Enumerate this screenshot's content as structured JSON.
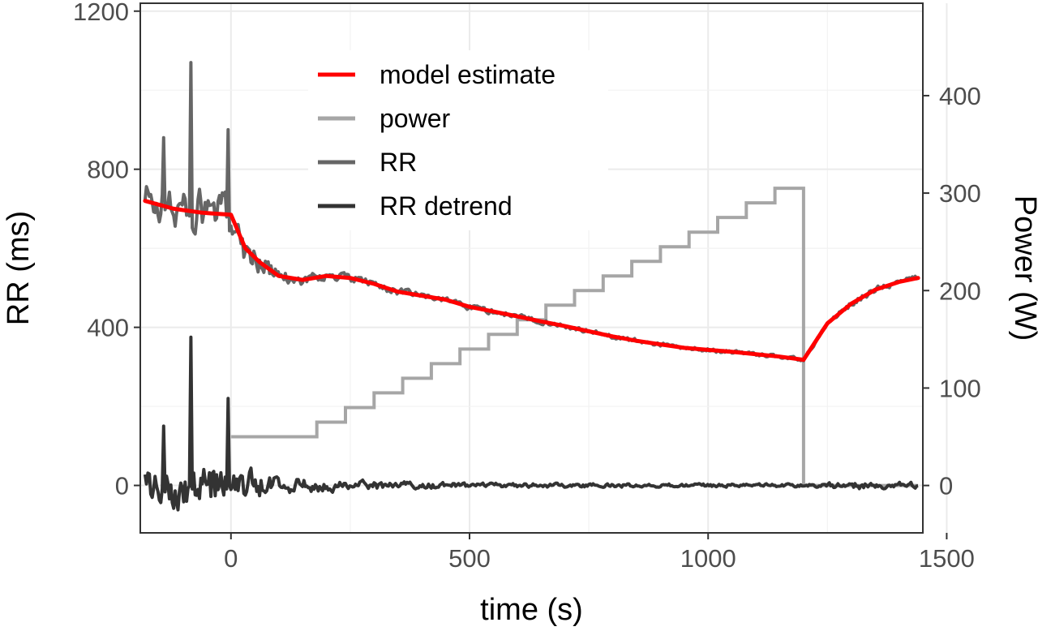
{
  "chart_data": {
    "type": "line",
    "xlabel": "time (s)",
    "ylabel_left": "RR (ms)",
    "ylabel_right": "Power (W)",
    "xlim": [
      -190,
      1450
    ],
    "ylim_left": [
      -120,
      1220
    ],
    "ylim_right": [
      -48.6,
      494.8
    ],
    "x_ticks": [
      0,
      500,
      1000,
      1500
    ],
    "y_left_ticks": [
      0,
      400,
      800,
      1200
    ],
    "y_right_ticks": [
      0,
      100,
      200,
      300,
      400
    ],
    "grid": true,
    "legend_position": "top-left inside",
    "legend": [
      {
        "label": "model estimate",
        "color": "#ff0000"
      },
      {
        "label": "power",
        "color": "#a6a6a6"
      },
      {
        "label": "RR",
        "color": "#666666"
      },
      {
        "label": "RR detrend",
        "color": "#333333"
      }
    ],
    "series": [
      {
        "name": "model estimate",
        "axis": "left",
        "color": "#ff0000",
        "x": [
          -180,
          -120,
          -60,
          0,
          30,
          60,
          100,
          150,
          200,
          250,
          300,
          350,
          400,
          450,
          500,
          550,
          600,
          650,
          700,
          750,
          800,
          850,
          900,
          950,
          1000,
          1050,
          1100,
          1150,
          1200,
          1250,
          1300,
          1350,
          1400,
          1440
        ],
        "values": [
          720,
          700,
          690,
          685,
          600,
          565,
          530,
          520,
          530,
          525,
          510,
          490,
          480,
          470,
          452,
          440,
          428,
          415,
          403,
          390,
          377,
          366,
          357,
          348,
          343,
          338,
          332,
          326,
          318,
          410,
          460,
          495,
          515,
          525
        ]
      },
      {
        "name": "power",
        "axis": "right",
        "color": "#a6a6a6",
        "step_x": [
          0,
          180,
          240,
          300,
          360,
          420,
          480,
          540,
          600,
          660,
          720,
          780,
          840,
          900,
          960,
          1020,
          1080,
          1140,
          1200
        ],
        "step_values": [
          50,
          65,
          80,
          95,
          110,
          125,
          140,
          155,
          170,
          185,
          200,
          215,
          230,
          245,
          260,
          275,
          290,
          305,
          0
        ],
        "end_x": 1440
      },
      {
        "name": "RR",
        "axis": "left",
        "color": "#666666",
        "x_start": -180,
        "x_end": 1440,
        "noise_amplitude": [
          [
            -180,
            80
          ],
          [
            0,
            80
          ],
          [
            100,
            25
          ],
          [
            250,
            15
          ],
          [
            700,
            8
          ],
          [
            1200,
            6
          ],
          [
            1300,
            12
          ],
          [
            1440,
            10
          ]
        ],
        "spikes": [
          {
            "x": -85,
            "value": 1070
          },
          {
            "x": -5,
            "value": 900
          },
          {
            "x": -140,
            "value": 880
          }
        ]
      },
      {
        "name": "RR detrend",
        "axis": "left",
        "color": "#333333",
        "x_start": -180,
        "x_end": 1440,
        "noise_amplitude": [
          [
            -180,
            80
          ],
          [
            0,
            80
          ],
          [
            100,
            30
          ],
          [
            250,
            18
          ],
          [
            500,
            9
          ],
          [
            1000,
            6
          ],
          [
            1200,
            6
          ],
          [
            1300,
            14
          ],
          [
            1440,
            12
          ]
        ],
        "spikes": [
          {
            "x": -85,
            "value": 375
          },
          {
            "x": -5,
            "value": 220
          },
          {
            "x": -140,
            "value": 150
          }
        ]
      }
    ]
  }
}
